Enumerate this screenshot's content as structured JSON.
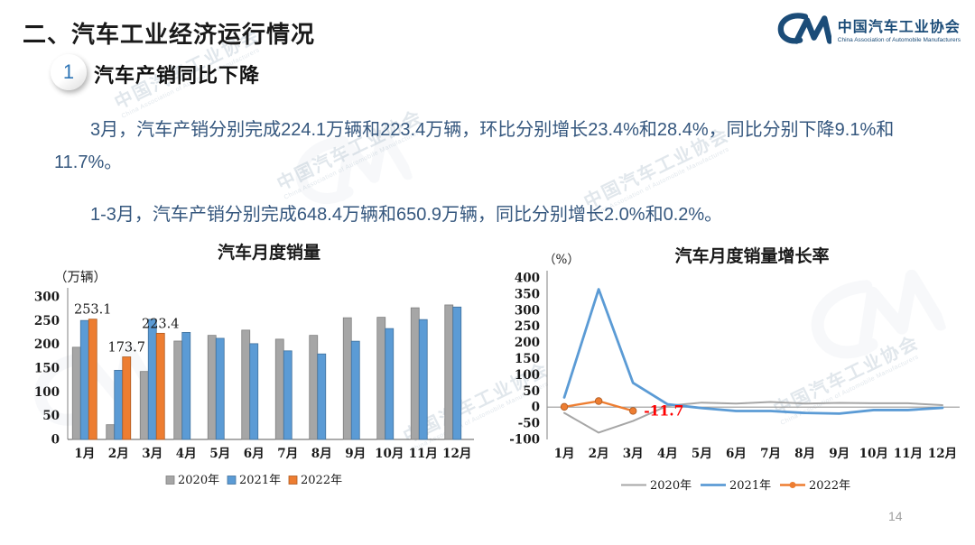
{
  "page": {
    "title": "二、汽车工业经济运行情况",
    "page_number": "14"
  },
  "logo": {
    "name_zh": "中国汽车工业协会",
    "name_en": "China Association of Automobile Manufacturers"
  },
  "watermark": {
    "zh": "中国汽车工业协会",
    "en": "China Association of Automobile Manufacturers"
  },
  "section": {
    "number": "1",
    "heading": "汽车产销同比下降"
  },
  "paragraphs": [
    "3月，汽车产销分别完成224.1万辆和223.4万辆，环比分别增长23.4%和28.4%，同比分别下降9.1%和11.7%。",
    "1-3月，汽车产销分别完成648.4万辆和650.9万辆，同比分别增长2.0%和0.2%。"
  ],
  "colors": {
    "series_2020": "#a6a6a6",
    "series_2021": "#5b9bd5",
    "series_2022": "#ed7d31",
    "annotation_red": "#ff0000",
    "body_blue": "#35577e",
    "logo_blue": "#1b4c78"
  },
  "chart_data": [
    {
      "type": "bar",
      "title": "汽车月度销量",
      "unit_label": "（万辆）",
      "categories": [
        "1月",
        "2月",
        "3月",
        "4月",
        "5月",
        "6月",
        "7月",
        "8月",
        "9月",
        "10月",
        "11月",
        "12月"
      ],
      "series": [
        {
          "name": "2020年",
          "color": "#a6a6a6",
          "values": [
            194,
            31,
            143,
            207,
            219,
            230,
            211,
            219,
            256,
            257,
            277,
            283
          ]
        },
        {
          "name": "2021年",
          "color": "#5b9bd5",
          "values": [
            250.3,
            145.5,
            252.6,
            225.2,
            212.8,
            201.5,
            186.4,
            179.9,
            206.7,
            233.3,
            252.2,
            278.6
          ]
        },
        {
          "name": "2022年",
          "color": "#ed7d31",
          "values": [
            253.1,
            173.7,
            223.4
          ]
        }
      ],
      "data_labels": [
        {
          "month_index": 0,
          "text": "253.1"
        },
        {
          "month_index": 1,
          "text": "173.7"
        },
        {
          "month_index": 2,
          "text": "223.4"
        }
      ],
      "ylim": [
        0,
        300
      ],
      "ytick_step": 50,
      "grid": false,
      "legend_position": "bottom"
    },
    {
      "type": "line",
      "title": "汽车月度销量增长率",
      "unit_label": "（%）",
      "categories": [
        "1月",
        "2月",
        "3月",
        "4月",
        "5月",
        "6月",
        "7月",
        "8月",
        "9月",
        "10月",
        "11月",
        "12月"
      ],
      "series": [
        {
          "name": "2020年",
          "color": "#a6a6a6",
          "marker": false,
          "values": [
            -18,
            -79,
            -43,
            4,
            14,
            11,
            16,
            11,
            13,
            12,
            12,
            6
          ]
        },
        {
          "name": "2021年",
          "color": "#5b9bd5",
          "marker": false,
          "values": [
            30,
            365,
            75,
            9,
            -3,
            -12,
            -12,
            -18,
            -20,
            -9,
            -9,
            -2
          ]
        },
        {
          "name": "2022年",
          "color": "#ed7d31",
          "marker": true,
          "values": [
            0.9,
            18.7,
            -11.7
          ]
        }
      ],
      "annotation": {
        "text": "-11.7",
        "color": "#ff0000",
        "month_index": 2
      },
      "ylim": [
        -100,
        400
      ],
      "ytick_step": 50,
      "grid": false,
      "legend_position": "bottom"
    }
  ]
}
